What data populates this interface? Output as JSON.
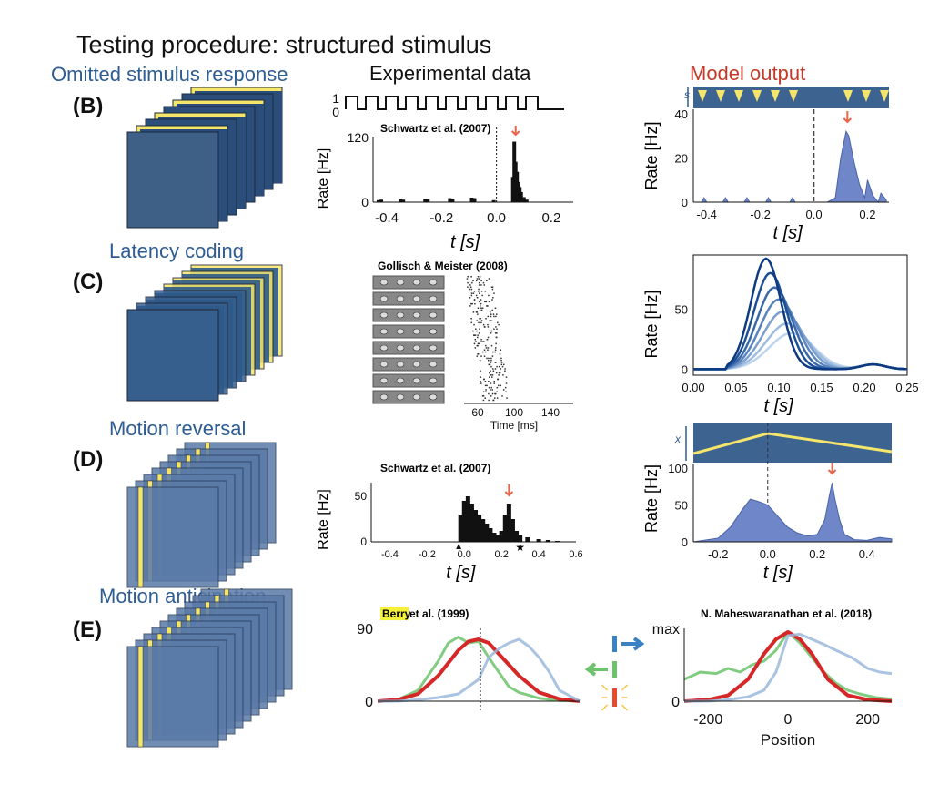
{
  "title": "Testing procedure: structured stimulus",
  "sections": {
    "omitted": "Omitted stimulus response",
    "latency": "Latency coding",
    "reversal": "Motion reversal",
    "anticipation": "Motion anticipation"
  },
  "columns": {
    "experimental": "Experimental data",
    "model": "Model output"
  },
  "panels": {
    "B": "(B)",
    "C": "(C)",
    "D": "(D)",
    "E": "(E)"
  },
  "colors": {
    "stim_blue": "#2b4d7a",
    "stim_yellow": "#f5e66b",
    "model_fill": "#6f86c8",
    "arrow_red": "#e8644a",
    "green": "#6cc36c",
    "red": "#d62728",
    "light_blue": "#9bb8dc"
  },
  "chart_data": [
    {
      "id": "B-exp",
      "type": "bar",
      "annotation": "Schwartz et al. (2007)",
      "ylabel": "Rate [Hz]",
      "xlabel": "t [s]",
      "stim_yticks": [
        "1",
        "0"
      ],
      "yticks": [
        "120",
        "0"
      ],
      "xticks": [
        "-0.4",
        "-0.2",
        "0.0",
        "0.2"
      ],
      "xlim": [
        -0.45,
        0.28
      ],
      "ylim": [
        0,
        130
      ],
      "x": [
        -0.43,
        -0.42,
        -0.35,
        -0.34,
        -0.26,
        -0.25,
        -0.17,
        -0.16,
        -0.09,
        -0.08,
        -0.01,
        0.06,
        0.065,
        0.07,
        0.075,
        0.08,
        0.085,
        0.09,
        0.1,
        0.11
      ],
      "values": [
        4,
        5,
        6,
        5,
        7,
        6,
        8,
        7,
        9,
        8,
        4,
        50,
        120,
        80,
        60,
        40,
        30,
        20,
        10,
        5
      ]
    },
    {
      "id": "B-model",
      "type": "area",
      "ylabel": "Rate [Hz]",
      "xlabel": "t [s]",
      "stim_label": "s",
      "yticks": [
        "0",
        "20",
        "40"
      ],
      "xticks": [
        "-0.4",
        "-0.2",
        "0.0",
        "0.2"
      ],
      "xlim": [
        -0.45,
        0.28
      ],
      "ylim": [
        0,
        42
      ],
      "x": [
        -0.45,
        -0.42,
        -0.41,
        -0.4,
        -0.34,
        -0.33,
        -0.32,
        -0.26,
        -0.25,
        -0.24,
        -0.18,
        -0.17,
        -0.16,
        -0.09,
        -0.08,
        -0.07,
        0.0,
        0.05,
        0.08,
        0.1,
        0.12,
        0.13,
        0.15,
        0.17,
        0.19,
        0.2,
        0.22,
        0.24,
        0.25,
        0.27
      ],
      "values": [
        0,
        0,
        2,
        0,
        0,
        2,
        0,
        0,
        2,
        0,
        0,
        2,
        0,
        0,
        2,
        0,
        0,
        0,
        2,
        20,
        32,
        30,
        18,
        8,
        2,
        10,
        3,
        0,
        4,
        1
      ]
    },
    {
      "id": "C-exp",
      "type": "scatter",
      "annotation": "Gollisch & Meister (2008)",
      "xlabel": "Time [ms]",
      "xticks": [
        "60",
        "100",
        "140"
      ],
      "xlim": [
        45,
        165
      ]
    },
    {
      "id": "C-model",
      "type": "line",
      "ylabel": "Rate [Hz]",
      "xlabel": "t [s]",
      "yticks": [
        "0",
        "50"
      ],
      "xticks": [
        "0.00",
        "0.05",
        "0.10",
        "0.15",
        "0.20",
        "0.25"
      ],
      "xlim": [
        0,
        0.25
      ],
      "ylim": [
        -5,
        95
      ],
      "series": [
        {
          "peak_x": 0.085,
          "peak_y": 92,
          "width": 0.025
        },
        {
          "peak_x": 0.09,
          "peak_y": 80,
          "width": 0.027
        },
        {
          "peak_x": 0.095,
          "peak_y": 68,
          "width": 0.029
        },
        {
          "peak_x": 0.1,
          "peak_y": 58,
          "width": 0.031
        },
        {
          "peak_x": 0.105,
          "peak_y": 48,
          "width": 0.033
        },
        {
          "peak_x": 0.11,
          "peak_y": 38,
          "width": 0.035
        },
        {
          "peak_x": 0.115,
          "peak_y": 30,
          "width": 0.037
        }
      ]
    },
    {
      "id": "D-exp",
      "type": "bar",
      "annotation": "Schwartz et al. (2007)",
      "ylabel": "Rate [Hz]",
      "xlabel": "t [s]",
      "yticks": [
        "0",
        "50"
      ],
      "xticks": [
        "-0.4",
        "-0.2",
        "0.0",
        "0.2",
        "0.4",
        "0.6"
      ],
      "xlim": [
        -0.5,
        0.6
      ],
      "ylim": [
        0,
        65
      ],
      "x": [
        -0.02,
        0.0,
        0.02,
        0.04,
        0.06,
        0.08,
        0.1,
        0.12,
        0.14,
        0.16,
        0.18,
        0.2,
        0.22,
        0.24,
        0.26,
        0.28,
        0.3,
        0.34,
        0.4,
        0.45,
        0.5
      ],
      "values": [
        30,
        45,
        50,
        42,
        35,
        30,
        25,
        20,
        15,
        10,
        8,
        12,
        30,
        42,
        25,
        12,
        8,
        5,
        3,
        2,
        1
      ]
    },
    {
      "id": "D-model",
      "type": "area",
      "ylabel": "Rate [Hz]",
      "xlabel": "t [s]",
      "stim_label": "x",
      "yticks": [
        "0",
        "50",
        "100"
      ],
      "xticks": [
        "-0.2",
        "0.0",
        "0.2",
        "0.4"
      ],
      "xlim": [
        -0.3,
        0.5
      ],
      "ylim": [
        0,
        105
      ],
      "x": [
        -0.3,
        -0.2,
        -0.15,
        -0.1,
        -0.07,
        -0.04,
        0.0,
        0.04,
        0.08,
        0.12,
        0.16,
        0.2,
        0.23,
        0.25,
        0.26,
        0.27,
        0.29,
        0.31,
        0.35,
        0.4,
        0.45,
        0.5
      ],
      "values": [
        0,
        5,
        20,
        45,
        58,
        55,
        50,
        35,
        20,
        12,
        8,
        10,
        30,
        65,
        80,
        60,
        30,
        10,
        3,
        2,
        6,
        4
      ]
    },
    {
      "id": "E-exp",
      "type": "line",
      "annotation_highlight": "Berry",
      "annotation_rest": " et al. (1999)",
      "yticks": [
        "0",
        "90"
      ],
      "xlim": [
        0,
        10
      ],
      "ylim": [
        0,
        100
      ],
      "series": [
        {
          "color": "green",
          "x": [
            0,
            1,
            2,
            3,
            3.5,
            4,
            4.5,
            5,
            5.5,
            6,
            6.5,
            7,
            7.5,
            8,
            9,
            10
          ],
          "values": [
            0,
            2,
            15,
            55,
            80,
            88,
            80,
            82,
            60,
            40,
            20,
            12,
            8,
            4,
            1,
            0
          ]
        },
        {
          "color": "red",
          "x": [
            0,
            1,
            2,
            3,
            4,
            4.5,
            5,
            5.5,
            6,
            7,
            8,
            9,
            10
          ],
          "values": [
            0,
            2,
            10,
            35,
            70,
            82,
            85,
            80,
            65,
            35,
            12,
            3,
            0
          ]
        },
        {
          "color": "light_blue",
          "x": [
            0,
            1,
            2,
            3,
            4,
            5,
            5.5,
            6,
            6.5,
            7,
            7.5,
            8,
            8.5,
            9,
            10
          ],
          "values": [
            0,
            0,
            2,
            5,
            10,
            30,
            60,
            72,
            80,
            85,
            75,
            60,
            40,
            15,
            0
          ]
        }
      ]
    },
    {
      "id": "E-model",
      "type": "line",
      "annotation": "N. Maheswaranathan et al. (2018)",
      "xlabel": "Position",
      "yticks": [
        "0",
        "max"
      ],
      "xticks": [
        "-200",
        "0",
        "200"
      ],
      "xlim": [
        -260,
        260
      ],
      "ylim": [
        0,
        100
      ],
      "series": [
        {
          "color": "green",
          "x": [
            -260,
            -220,
            -180,
            -150,
            -120,
            -90,
            -60,
            -30,
            0,
            30,
            60,
            90,
            120,
            150,
            180,
            220,
            260
          ],
          "values": [
            30,
            40,
            38,
            45,
            40,
            50,
            55,
            70,
            95,
            80,
            60,
            40,
            25,
            15,
            10,
            5,
            3
          ]
        },
        {
          "color": "red",
          "x": [
            -260,
            -200,
            -150,
            -100,
            -60,
            -30,
            0,
            30,
            60,
            100,
            150,
            200,
            260
          ],
          "values": [
            0,
            2,
            8,
            30,
            65,
            85,
            95,
            85,
            65,
            30,
            8,
            2,
            0
          ]
        },
        {
          "color": "light_blue",
          "x": [
            -260,
            -200,
            -150,
            -100,
            -60,
            -30,
            0,
            30,
            60,
            90,
            120,
            160,
            200,
            230,
            260
          ],
          "values": [
            0,
            0,
            2,
            6,
            15,
            40,
            90,
            92,
            85,
            78,
            70,
            60,
            45,
            40,
            38
          ]
        }
      ]
    }
  ]
}
